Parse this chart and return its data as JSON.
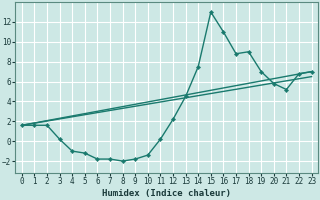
{
  "xlabel": "Humidex (Indice chaleur)",
  "ylabel": "",
  "bg_color": "#cde8e5",
  "line_color": "#1a7a6e",
  "grid_color": "#ffffff",
  "xlim": [
    -0.5,
    23.5
  ],
  "ylim": [
    -3.2,
    14.0
  ],
  "xticks": [
    0,
    1,
    2,
    3,
    4,
    5,
    6,
    7,
    8,
    9,
    10,
    11,
    12,
    13,
    14,
    15,
    16,
    17,
    18,
    19,
    20,
    21,
    22,
    23
  ],
  "yticks": [
    -2,
    0,
    2,
    4,
    6,
    8,
    10,
    12
  ],
  "line1_x": [
    0,
    1,
    2,
    3,
    4,
    5,
    6,
    7,
    8,
    9,
    10,
    11,
    12,
    13,
    14,
    15,
    16,
    17,
    18,
    19,
    20,
    21,
    22,
    23
  ],
  "line1_y": [
    1.6,
    1.6,
    1.6,
    0.2,
    -1.0,
    -1.2,
    -1.8,
    -1.8,
    -2.0,
    -1.8,
    -1.4,
    0.2,
    2.2,
    4.5,
    7.5,
    13.0,
    11.0,
    8.8,
    9.0,
    7.0,
    5.8,
    5.2,
    6.8,
    7.0
  ],
  "line2_x": [
    0,
    23
  ],
  "line2_y": [
    1.6,
    7.0
  ],
  "line3_x": [
    0,
    23
  ],
  "line3_y": [
    1.6,
    6.5
  ],
  "xlabel_fontsize": 6.5,
  "tick_fontsize": 5.5
}
